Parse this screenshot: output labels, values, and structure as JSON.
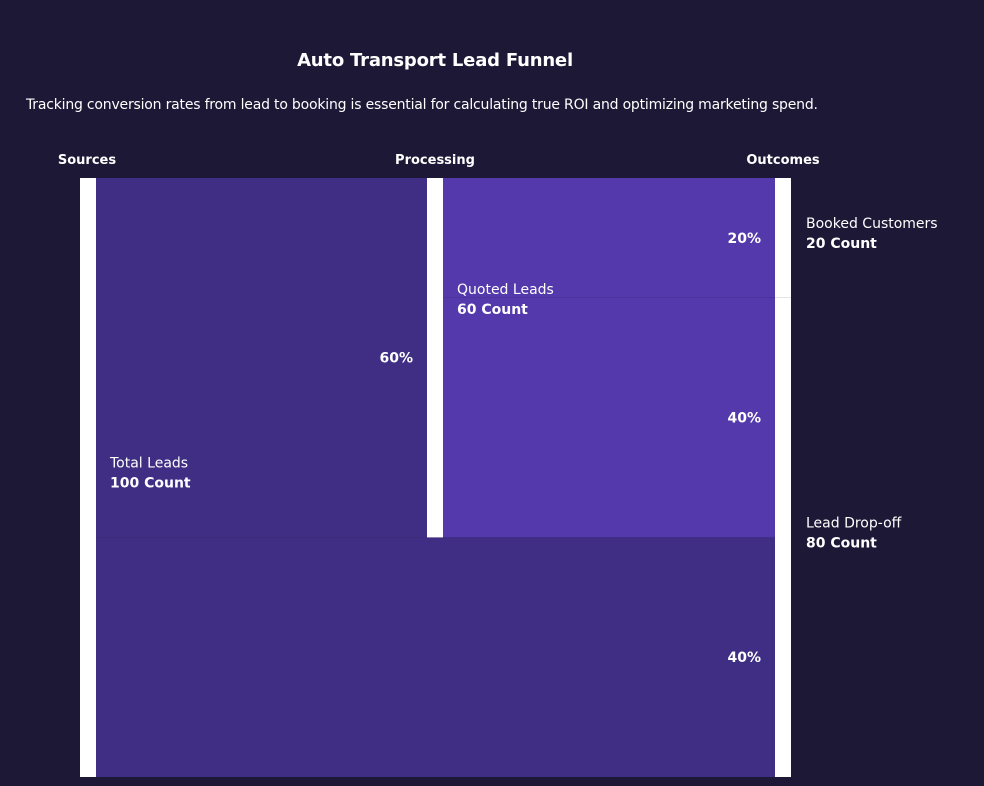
{
  "title": "Auto Transport Lead Funnel",
  "subtitle": "Tracking conversion rates from lead to booking is essential for calculating true ROI and optimizing marketing spend.",
  "chart_data": {
    "type": "sankey",
    "title": "Auto Transport Lead Funnel",
    "columns": [
      "Sources",
      "Processing",
      "Outcomes"
    ],
    "value_suffix": "Count",
    "nodes": [
      {
        "id": "total",
        "name": "Total Leads",
        "value": 100,
        "count_label": "100 Count",
        "column": 0
      },
      {
        "id": "quoted",
        "name": "Quoted Leads",
        "value": 60,
        "count_label": "60 Count",
        "column": 1
      },
      {
        "id": "booked",
        "name": "Booked Customers",
        "value": 20,
        "count_label": "20 Count",
        "column": 2
      },
      {
        "id": "dropoff",
        "name": "Lead Drop-off",
        "value": 80,
        "count_label": "80 Count",
        "column": 2
      }
    ],
    "links": [
      {
        "source": "total",
        "target": "quoted",
        "value": 60,
        "label": "60%"
      },
      {
        "source": "quoted",
        "target": "booked",
        "value": 20,
        "label": "20%"
      },
      {
        "source": "quoted",
        "target": "dropoff",
        "value": 40,
        "label": "40%"
      },
      {
        "source": "total",
        "target": "dropoff",
        "value": 40,
        "label": "40%"
      }
    ],
    "colors": {
      "background": "#1c1836",
      "node": "#ffffff",
      "link_level1": "#3f2e84",
      "link_level2": "#5439ac",
      "text": "#ffffff"
    }
  }
}
